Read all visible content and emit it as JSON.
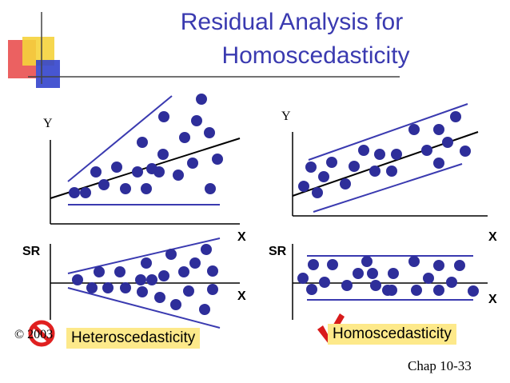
{
  "title": {
    "line1": "Residual Analysis for",
    "line2": "Homoscedasticity"
  },
  "left": {
    "y_label": "Y",
    "x_label_scatter": "X",
    "sr_label": "SR",
    "x_label_resid": "X",
    "badge": "Heteroscedasticity",
    "status_icon": "prohibited-icon"
  },
  "right": {
    "y_label": "Y",
    "x_label_scatter": "X",
    "sr_label": "SR",
    "x_label_resid": "X",
    "badge": "Homoscedasticity",
    "status_icon": "checkmark-icon"
  },
  "footer": {
    "copyright": "© 2003",
    "chapter": "Chap 10-33"
  },
  "colors": {
    "title": "#3a3ab0",
    "points": "#2e2e9a",
    "guide_lines": "#3a3ab0",
    "badge_bg": "#fde98a",
    "deco_red": "#e63a3a",
    "deco_yellow": "#f5d33c",
    "deco_blue": "#3344cc"
  }
}
